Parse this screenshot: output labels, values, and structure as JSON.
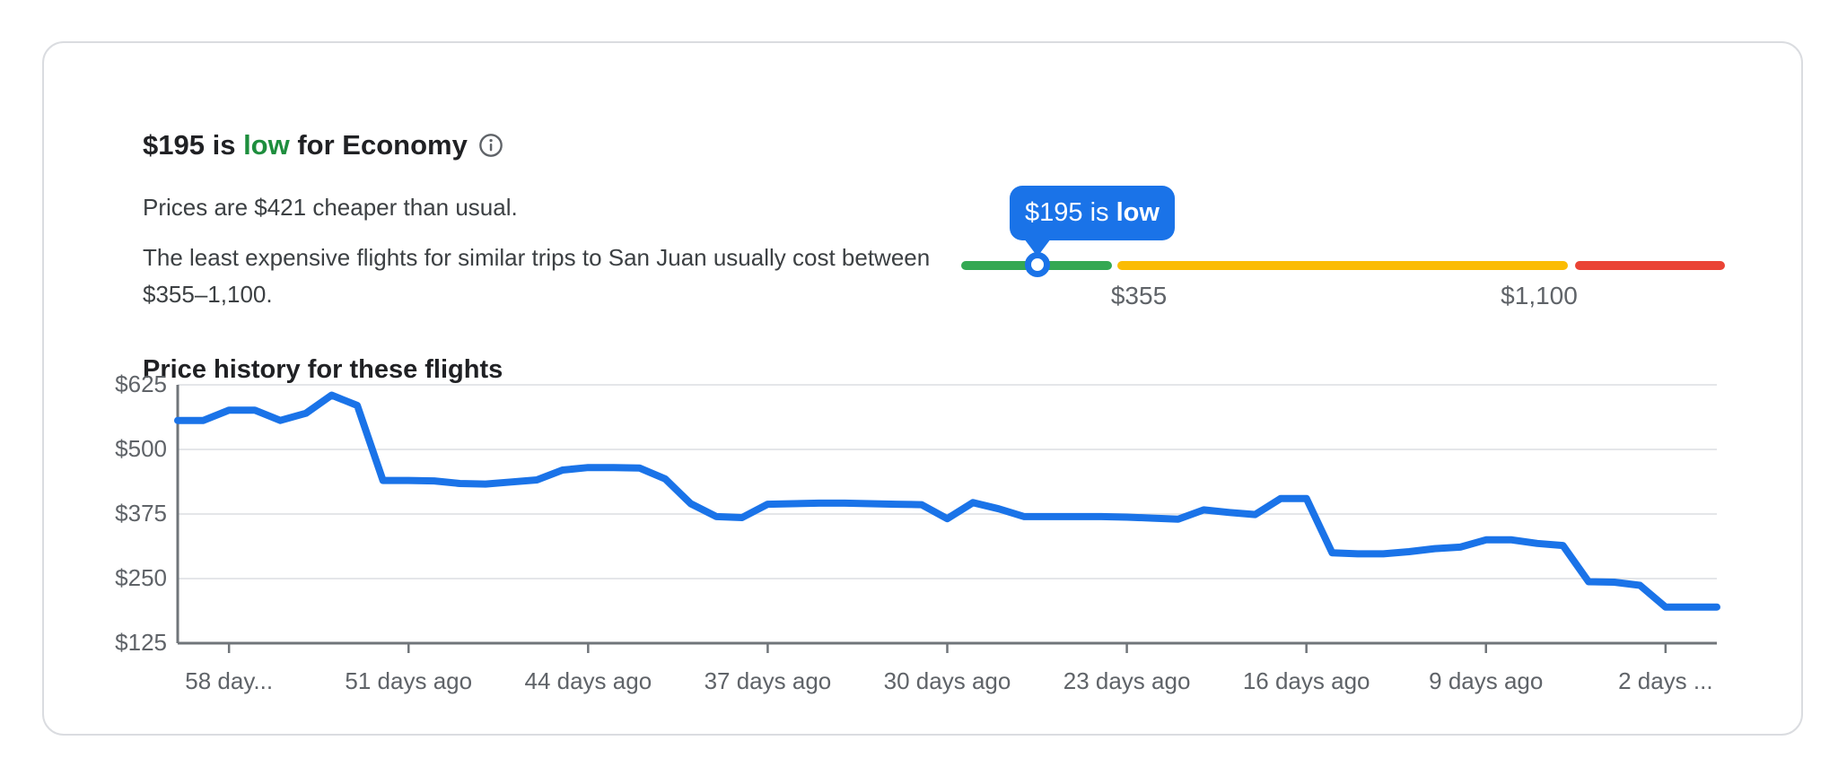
{
  "card": {
    "header": {
      "price": "$195",
      "mid": " is ",
      "level": "low",
      "suffix": " for Economy",
      "level_color": "#1e8e3e"
    },
    "summary": "Prices are $421 cheaper than usual.",
    "range_text": "The least expensive flights for similar trips to San Juan usually cost between $355–1,100.",
    "slider": {
      "tooltip_prefix": "$195 is ",
      "tooltip_bold": "low",
      "low_label": "$355",
      "high_label": "$1,100",
      "colors": {
        "low_segment": "#34a853",
        "typical_segment": "#fbbc04",
        "high_segment": "#ea4335",
        "accent": "#1a73e8"
      }
    },
    "chart_title": "Price history for these flights"
  },
  "chart_data": {
    "type": "line",
    "title": "Price history for these flights",
    "x_unit": "days ago",
    "days_ago": [
      60,
      59,
      58,
      57,
      56,
      55,
      54,
      53,
      52,
      51,
      50,
      49,
      48,
      47,
      46,
      45,
      44,
      43,
      42,
      41,
      40,
      39,
      38,
      37,
      36,
      35,
      34,
      33,
      32,
      31,
      30,
      29,
      28,
      27,
      26,
      25,
      24,
      23,
      22,
      21,
      20,
      19,
      18,
      17,
      16,
      15,
      14,
      13,
      12,
      11,
      10,
      9,
      8,
      7,
      6,
      5,
      4,
      3,
      2,
      1,
      0
    ],
    "values": [
      556,
      556,
      576,
      576,
      556,
      570,
      605,
      585,
      440,
      440,
      439,
      434,
      433,
      437,
      441,
      460,
      465,
      465,
      464,
      443,
      395,
      370,
      368,
      394,
      395,
      396,
      396,
      395,
      394,
      393,
      366,
      397,
      385,
      370,
      370,
      370,
      370,
      369,
      367,
      365,
      383,
      378,
      374,
      405,
      405,
      300,
      298,
      298,
      302,
      308,
      311,
      325,
      325,
      318,
      314,
      244,
      243,
      237,
      195,
      195,
      195
    ],
    "x_tick_days": [
      58,
      51,
      44,
      37,
      30,
      23,
      16,
      9,
      2
    ],
    "x_tick_labels": [
      "58 day...",
      "51 days ago",
      "44 days ago",
      "37 days ago",
      "30 days ago",
      "23 days ago",
      "16 days ago",
      "9 days ago",
      "2 days ..."
    ],
    "y_ticks": [
      625,
      500,
      375,
      250,
      125
    ],
    "y_tick_labels": [
      "$625",
      "$500",
      "$375",
      "$250",
      "$125"
    ],
    "ylim": [
      125,
      625
    ],
    "grid": true,
    "legend": "none",
    "line_color": "#1a73e8",
    "grid_color": "#e4e6e9",
    "axis_color": "#70757a"
  }
}
